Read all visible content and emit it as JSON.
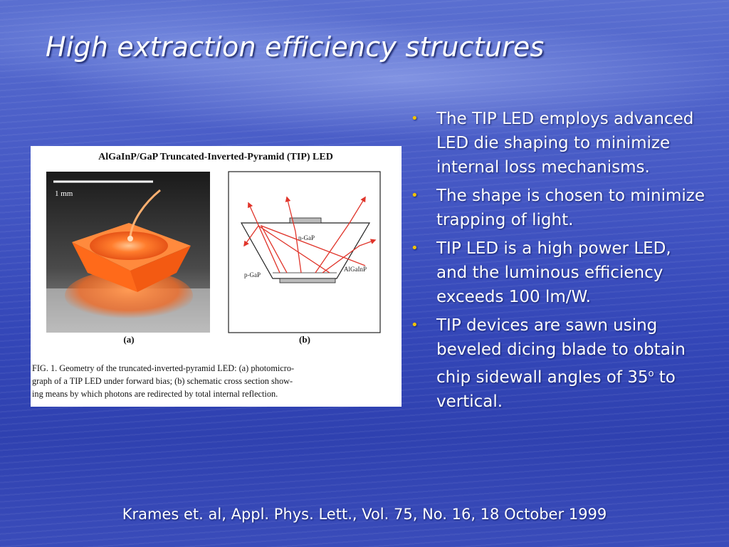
{
  "slide": {
    "title": "High extraction efficiency structures",
    "bullets": [
      {
        "text": "The TIP LED employs advanced LED die shaping to minimize internal loss mechanisms."
      },
      {
        "text": "The shape is chosen to minimize trapping of light."
      },
      {
        "text": "TIP LED is a high power LED, and the luminous efficiency exceeds 100 lm/W."
      },
      {
        "text_before": "TIP devices are sawn using beveled dicing blade to obtain chip sidewall angles of 35",
        "superscript": "o",
        "text_after": " to vertical."
      }
    ],
    "citation": "Krames et. al, Appl. Phys. Lett., Vol. 75, No. 16, 18 October 1999"
  },
  "figure": {
    "heading": "AlGaInP/GaP Truncated-Inverted-Pyramid (TIP) LED",
    "scale_label": "1 mm",
    "panel_a_label": "(a)",
    "panel_b_label": "(b)",
    "label_n_gap": "n-GaP",
    "label_p_gap": "p-GaP",
    "label_algainp": "AlGaInP",
    "caption_line1": "FIG. 1.  Geometry of the truncated-inverted-pyramid LED: (a) photomicro-",
    "caption_line2": "graph of a TIP LED under forward bias; (b) schematic cross section show-",
    "caption_line3": "ing means by which photons are redirected by total internal reflection.",
    "colors": {
      "glow": "#ff6a1a",
      "ray": "#e0342a",
      "bullet": "#f2c200"
    }
  }
}
